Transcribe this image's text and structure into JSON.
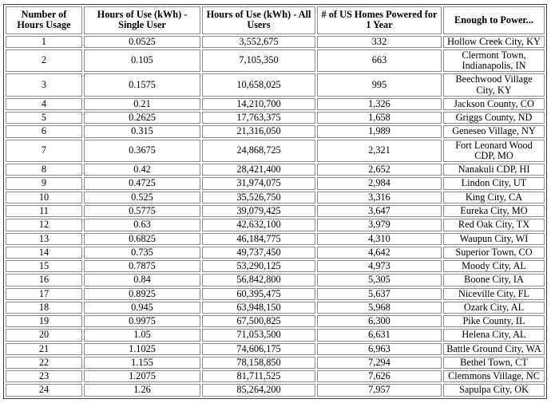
{
  "colors": {
    "background": "#ffffff",
    "text": "#000000",
    "outer_border": "#3f3f3f",
    "cell_border": "#8a8a8a"
  },
  "table": {
    "headers": [
      "Number of Hours Usage",
      "Hours of Use (kWh) - Single User",
      "Hours of Use (kWh) - All Users",
      "# of US Homes Powered for 1 Year",
      "Enough to Power..."
    ],
    "rows": [
      [
        "1",
        "0.0525",
        "3,552,675",
        "332",
        "Hollow Creek City, KY"
      ],
      [
        "2",
        "0.105",
        "7,105,350",
        "663",
        "Clermont Town, Indianapolis, IN"
      ],
      [
        "3",
        "0.1575",
        "10,658,025",
        "995",
        "Beechwood Village City, KY"
      ],
      [
        "4",
        "0.21",
        "14,210,700",
        "1,326",
        "Jackson County, CO"
      ],
      [
        "5",
        "0.2625",
        "17,763,375",
        "1,658",
        "Griggs County, ND"
      ],
      [
        "6",
        "0.315",
        "21,316,050",
        "1,989",
        "Geneseo Village, NY"
      ],
      [
        "7",
        "0.3675",
        "24,868,725",
        "2,321",
        "Fort Leonard Wood CDP, MO"
      ],
      [
        "8",
        "0.42",
        "28,421,400",
        "2,652",
        "Nanakuli CDP, HI"
      ],
      [
        "9",
        "0.4725",
        "31,974,075",
        "2,984",
        "Lindon City, UT"
      ],
      [
        "10",
        "0.525",
        "35,526,750",
        "3,316",
        "King City, CA"
      ],
      [
        "11",
        "0.5775",
        "39,079,425",
        "3,647",
        "Eureka City, MO"
      ],
      [
        "12",
        "0.63",
        "42,632,100",
        "3,979",
        "Red Oak City, TX"
      ],
      [
        "13",
        "0.6825",
        "46,184,775",
        "4,310",
        "Waupun City, WI"
      ],
      [
        "14",
        "0.735",
        "49,737,450",
        "4,642",
        "Superior Town, CO"
      ],
      [
        "15",
        "0.7875",
        "53,290,125",
        "4,973",
        "Moody City, AL"
      ],
      [
        "16",
        "0.84",
        "56,842,800",
        "5,305",
        "Boone City, IA"
      ],
      [
        "17",
        "0.8925",
        "60,395,475",
        "5,637",
        "Niceville City, FL"
      ],
      [
        "18",
        "0.945",
        "63,948,150",
        "5,968",
        "Ozark City, AL"
      ],
      [
        "19",
        "0.9975",
        "67,500,825",
        "6,300",
        "Pike County, IL"
      ],
      [
        "20",
        "1.05",
        "71,053,500",
        "6,631",
        "Helena City, AL"
      ],
      [
        "21",
        "1.1025",
        "74,606,175",
        "6,963",
        "Battle Ground City, WA"
      ],
      [
        "22",
        "1.155",
        "78,158,850",
        "7,294",
        "Bethel Town, CT"
      ],
      [
        "23",
        "1.2075",
        "81,711,525",
        "7,626",
        "Clemmons Village, NC"
      ],
      [
        "24",
        "1.26",
        "85,264,200",
        "7,957",
        "Sapulpa City, OK"
      ]
    ]
  },
  "chart_data": {
    "type": "table",
    "columns": [
      "Number of Hours Usage",
      "Hours of Use (kWh) - Single User",
      "Hours of Use (kWh) - All Users",
      "# of US Homes Powered for 1 Year",
      "Enough to Power..."
    ],
    "rows": [
      [
        1,
        0.0525,
        3552675,
        332,
        "Hollow Creek City, KY"
      ],
      [
        2,
        0.105,
        7105350,
        663,
        "Clermont Town, Indianapolis, IN"
      ],
      [
        3,
        0.1575,
        10658025,
        995,
        "Beechwood Village City, KY"
      ],
      [
        4,
        0.21,
        14210700,
        1326,
        "Jackson County, CO"
      ],
      [
        5,
        0.2625,
        17763375,
        1658,
        "Griggs County, ND"
      ],
      [
        6,
        0.315,
        21316050,
        1989,
        "Geneseo Village, NY"
      ],
      [
        7,
        0.3675,
        24868725,
        2321,
        "Fort Leonard Wood CDP, MO"
      ],
      [
        8,
        0.42,
        28421400,
        2652,
        "Nanakuli CDP, HI"
      ],
      [
        9,
        0.4725,
        31974075,
        2984,
        "Lindon City, UT"
      ],
      [
        10,
        0.525,
        35526750,
        3316,
        "King City, CA"
      ],
      [
        11,
        0.5775,
        39079425,
        3647,
        "Eureka City, MO"
      ],
      [
        12,
        0.63,
        42632100,
        3979,
        "Red Oak City, TX"
      ],
      [
        13,
        0.6825,
        46184775,
        4310,
        "Waupun City, WI"
      ],
      [
        14,
        0.735,
        49737450,
        4642,
        "Superior Town, CO"
      ],
      [
        15,
        0.7875,
        53290125,
        4973,
        "Moody City, AL"
      ],
      [
        16,
        0.84,
        56842800,
        5305,
        "Boone City, IA"
      ],
      [
        17,
        0.8925,
        60395475,
        5637,
        "Niceville City, FL"
      ],
      [
        18,
        0.945,
        63948150,
        5968,
        "Ozark City, AL"
      ],
      [
        19,
        0.9975,
        67500825,
        6300,
        "Pike County, IL"
      ],
      [
        20,
        1.05,
        71053500,
        6631,
        "Helena City, AL"
      ],
      [
        21,
        1.1025,
        74606175,
        6963,
        "Battle Ground City, WA"
      ],
      [
        22,
        1.155,
        78158850,
        7294,
        "Bethel Town, CT"
      ],
      [
        23,
        1.2075,
        81711525,
        7626,
        "Clemmons Village, NC"
      ],
      [
        24,
        1.26,
        85264200,
        7957,
        "Sapulpa City, OK"
      ]
    ]
  }
}
